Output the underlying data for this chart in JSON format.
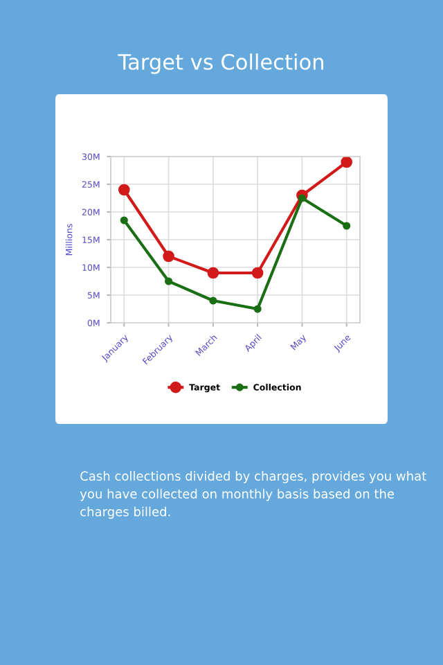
{
  "chart_data": {
    "type": "line",
    "title": "Target vs Collection",
    "ylabel": "Millions",
    "categories": [
      "January",
      "February",
      "March",
      "April",
      "May",
      "June"
    ],
    "series": [
      {
        "name": "Target",
        "color": "#d11a1a",
        "values": [
          24,
          12,
          9,
          9,
          23,
          29
        ]
      },
      {
        "name": "Collection",
        "color": "#1a6e14",
        "values": [
          18.5,
          7.5,
          4,
          2.5,
          22.5,
          17.5
        ]
      }
    ],
    "ylim": [
      0,
      30
    ],
    "yticks": [
      {
        "value": 0,
        "label": "0M"
      },
      {
        "value": 5,
        "label": "5M"
      },
      {
        "value": 10,
        "label": "10M"
      },
      {
        "value": 15,
        "label": "15M"
      },
      {
        "value": 20,
        "label": "20M"
      },
      {
        "value": 25,
        "label": "25M"
      },
      {
        "value": 30,
        "label": "30M"
      }
    ],
    "grid": true,
    "legend": "bottom",
    "marker": "circle",
    "line_style": "solid",
    "annotations": [
      "Cash collections divided by charges, provides you what you have collected on monthly basis based on the charges billed."
    ]
  }
}
